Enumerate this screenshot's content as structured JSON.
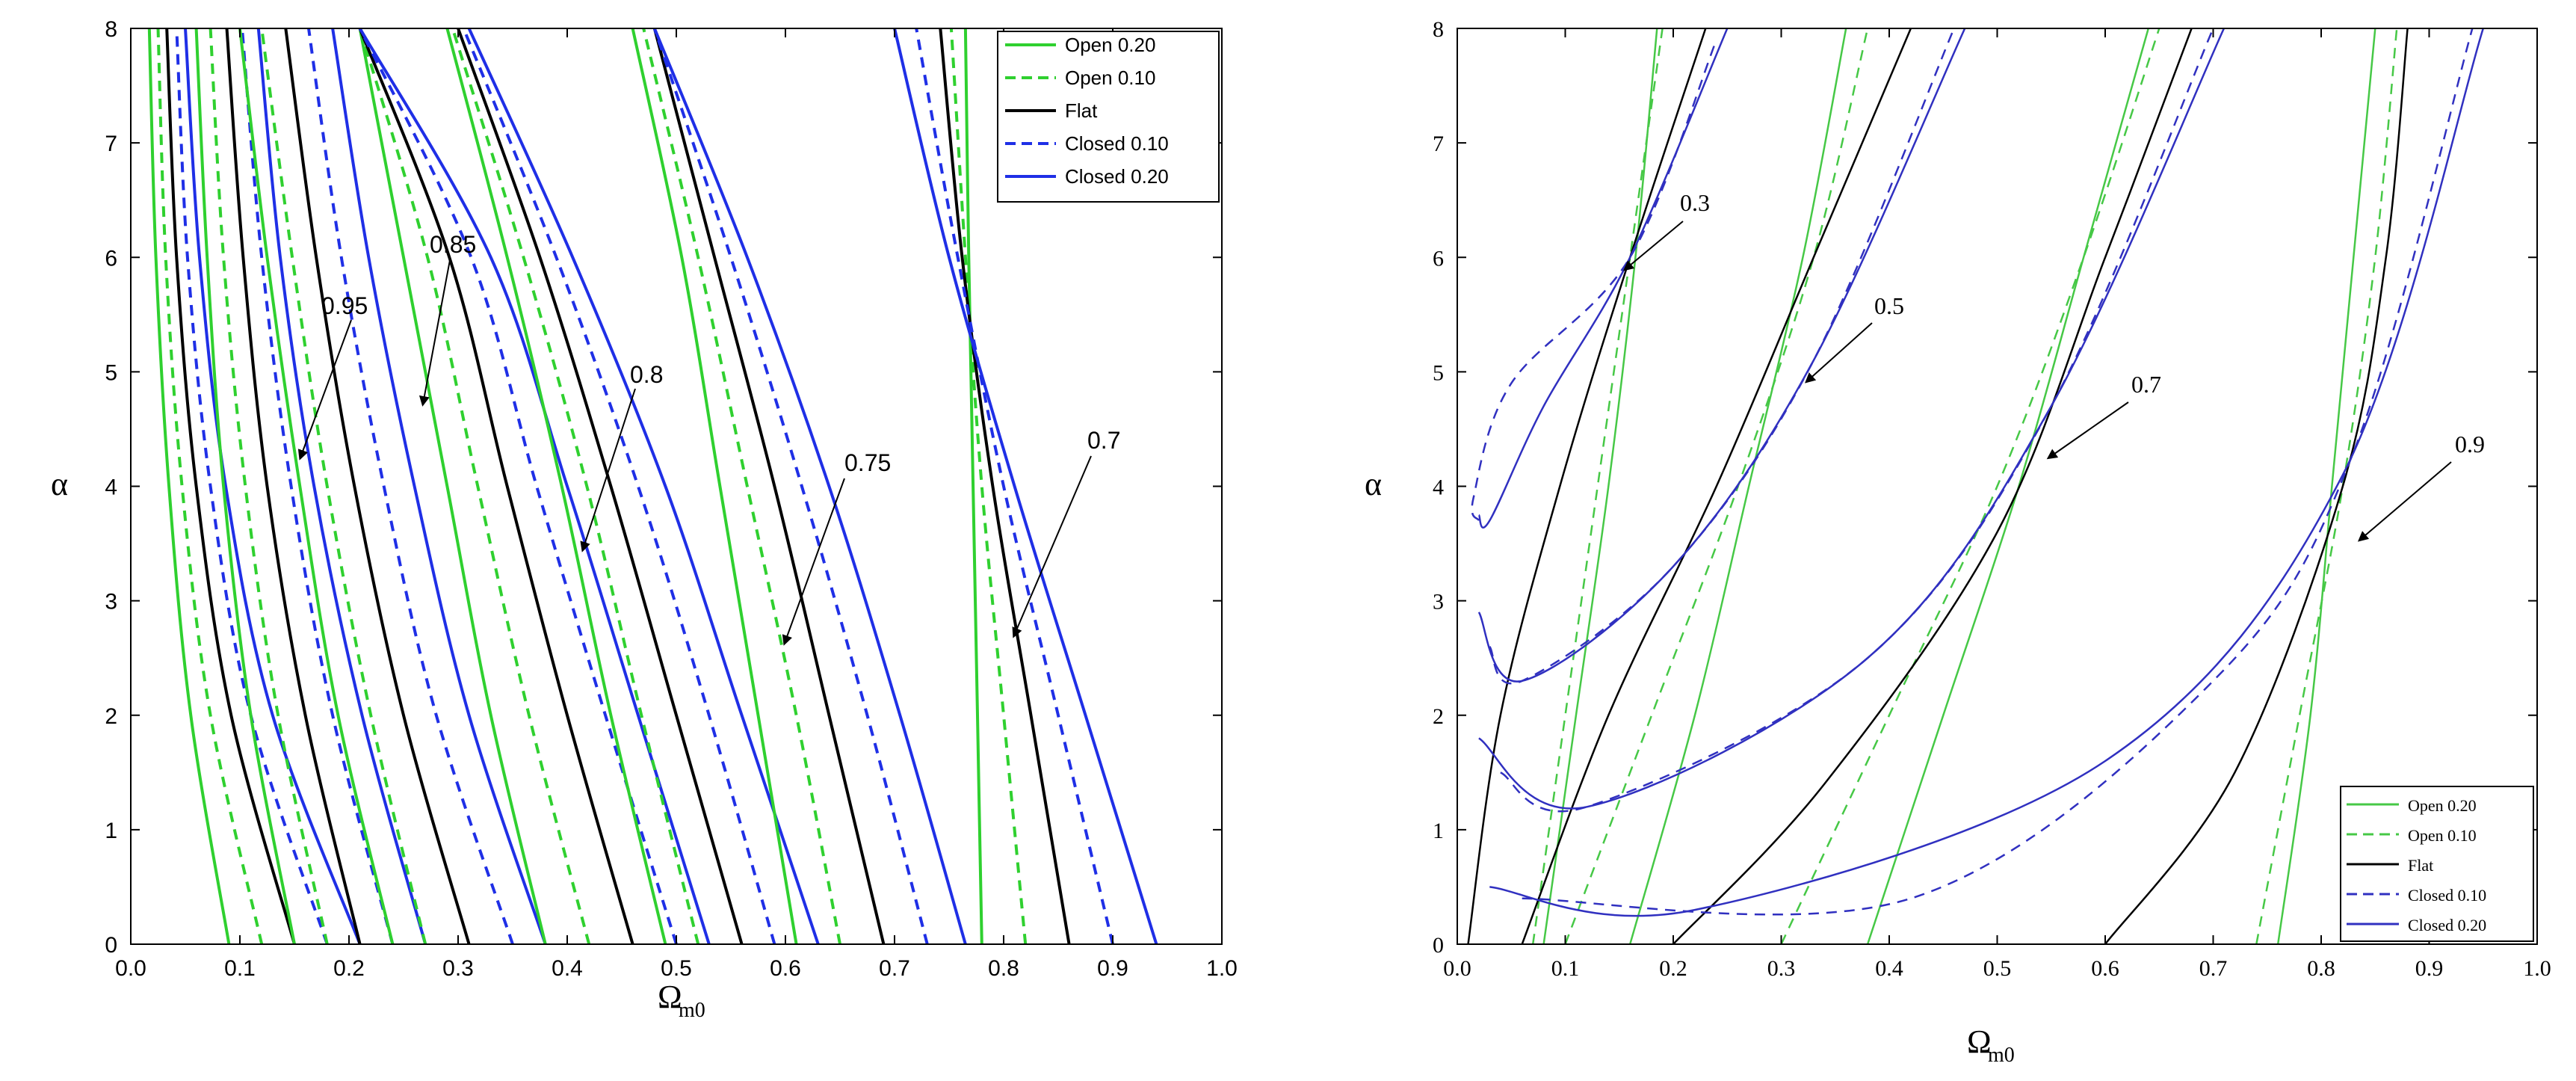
{
  "colors": {
    "open": "#2fd02f",
    "flat": "#000000",
    "closed": "#1f2fe6",
    "closedRight": "#3030c0",
    "openRight": "#46c846"
  },
  "chart_data": [
    {
      "type": "line",
      "panel": "left",
      "xlabel": "Ω",
      "xlabel_sub": "m0",
      "ylabel": "α",
      "xlim": [
        0.0,
        1.0
      ],
      "ylim": [
        0,
        8
      ],
      "xticks": [
        "0.0",
        "0.1",
        "0.2",
        "0.3",
        "0.4",
        "0.5",
        "0.6",
        "0.7",
        "0.8",
        "0.9",
        "1.0"
      ],
      "yticks": [
        "0",
        "1",
        "2",
        "3",
        "4",
        "5",
        "6",
        "7",
        "8"
      ],
      "legend": [
        "Open 0.20",
        "Open 0.10",
        "Flat",
        "Closed 0.10",
        "Closed 0.20"
      ],
      "annotations": [
        "0.95",
        "0.85",
        "0.8",
        "0.75",
        "0.7"
      ],
      "series": [
        {
          "group": "0.95-inner",
          "name": "Open 0.20",
          "x": [
            0.09,
            0.055,
            0.035,
            0.023,
            0.017
          ],
          "y": [
            0,
            2,
            4,
            6,
            8
          ]
        },
        {
          "group": "0.95-inner",
          "name": "Open 0.10",
          "x": [
            0.12,
            0.073,
            0.047,
            0.032,
            0.025
          ],
          "y": [
            0,
            2,
            4,
            6,
            8
          ]
        },
        {
          "group": "0.95-inner",
          "name": "Flat",
          "x": [
            0.15,
            0.092,
            0.06,
            0.042,
            0.033
          ],
          "y": [
            0,
            2,
            4,
            6,
            8
          ]
        },
        {
          "group": "0.95-inner",
          "name": "Closed 0.10",
          "x": [
            0.18,
            0.11,
            0.073,
            0.052,
            0.042
          ],
          "y": [
            0,
            2,
            4,
            6,
            8
          ]
        },
        {
          "group": "0.95-inner",
          "name": "Closed 0.20",
          "x": [
            0.21,
            0.13,
            0.087,
            0.063,
            0.05
          ],
          "y": [
            0,
            2,
            4,
            6,
            8
          ]
        },
        {
          "group": "0.95",
          "name": "Open 0.20",
          "x": [
            0.15,
            0.11,
            0.085,
            0.07,
            0.06
          ],
          "y": [
            0,
            2,
            4,
            6,
            8
          ]
        },
        {
          "group": "0.95",
          "name": "Open 0.10",
          "x": [
            0.18,
            0.135,
            0.105,
            0.085,
            0.073
          ],
          "y": [
            0,
            2,
            4,
            6,
            8
          ]
        },
        {
          "group": "0.95",
          "name": "Flat",
          "x": [
            0.21,
            0.16,
            0.125,
            0.103,
            0.088
          ],
          "y": [
            0,
            2,
            4,
            6,
            8
          ]
        },
        {
          "group": "0.95",
          "name": "Closed 0.10",
          "x": [
            0.24,
            0.185,
            0.147,
            0.12,
            0.102
          ],
          "y": [
            0,
            2,
            4,
            6,
            8
          ]
        },
        {
          "group": "0.95",
          "name": "Closed 0.20",
          "x": [
            0.27,
            0.212,
            0.168,
            0.137,
            0.117
          ],
          "y": [
            0,
            2,
            4,
            6,
            8
          ]
        },
        {
          "group": "0.85",
          "name": "Open 0.20",
          "x": [
            0.24,
            0.19,
            0.155,
            0.125,
            0.1
          ],
          "y": [
            0,
            2,
            4,
            6,
            8
          ]
        },
        {
          "group": "0.85",
          "name": "Open 0.10",
          "x": [
            0.27,
            0.22,
            0.18,
            0.148,
            0.12
          ],
          "y": [
            0,
            2,
            4,
            6,
            8
          ]
        },
        {
          "group": "0.85",
          "name": "Flat",
          "x": [
            0.31,
            0.25,
            0.205,
            0.17,
            0.142
          ],
          "y": [
            0,
            2,
            4,
            6,
            8
          ]
        },
        {
          "group": "0.85",
          "name": "Closed 0.10",
          "x": [
            0.35,
            0.28,
            0.232,
            0.193,
            0.163
          ],
          "y": [
            0,
            2,
            4,
            6,
            8
          ]
        },
        {
          "group": "0.85",
          "name": "Closed 0.20",
          "x": [
            0.38,
            0.31,
            0.26,
            0.218,
            0.185
          ],
          "y": [
            0,
            2,
            4,
            6,
            8
          ]
        },
        {
          "group": "0.8",
          "name": "Open 0.20",
          "x": [
            0.38,
            0.33,
            0.29,
            0.25,
            0.21
          ],
          "y": [
            0,
            2,
            4,
            6,
            8
          ]
        },
        {
          "group": "0.8",
          "name": "Open 0.10",
          "x": [
            0.42,
            0.365,
            0.318,
            0.272,
            0.21
          ],
          "y": [
            0,
            2,
            4,
            6,
            8
          ]
        },
        {
          "group": "0.8",
          "name": "Flat",
          "x": [
            0.46,
            0.4,
            0.345,
            0.292,
            0.21
          ],
          "y": [
            0,
            2,
            4,
            6,
            8
          ]
        },
        {
          "group": "0.8",
          "name": "Closed 0.10",
          "x": [
            0.5,
            0.435,
            0.372,
            0.312,
            0.21
          ],
          "y": [
            0,
            2,
            4,
            6,
            8
          ]
        },
        {
          "group": "0.8",
          "name": "Closed 0.20",
          "x": [
            0.53,
            0.465,
            0.4,
            0.33,
            0.21
          ],
          "y": [
            0,
            2,
            4,
            6,
            8
          ]
        },
        {
          "group": "0.75",
          "name": "Open 0.20",
          "x": [
            0.49,
            0.44,
            0.395,
            0.345,
            0.29
          ],
          "y": [
            0,
            2,
            4,
            6,
            8
          ]
        },
        {
          "group": "0.75",
          "name": "Open 0.10",
          "x": [
            0.52,
            0.468,
            0.418,
            0.36,
            0.295
          ],
          "y": [
            0,
            2,
            4,
            6,
            8
          ]
        },
        {
          "group": "0.75",
          "name": "Flat",
          "x": [
            0.56,
            0.5,
            0.44,
            0.375,
            0.3
          ],
          "y": [
            0,
            2,
            4,
            6,
            8
          ]
        },
        {
          "group": "0.75",
          "name": "Closed 0.10",
          "x": [
            0.59,
            0.53,
            0.465,
            0.39,
            0.305
          ],
          "y": [
            0,
            2,
            4,
            6,
            8
          ]
        },
        {
          "group": "0.75",
          "name": "Closed 0.20",
          "x": [
            0.63,
            0.56,
            0.49,
            0.405,
            0.31
          ],
          "y": [
            0,
            2,
            4,
            6,
            8
          ]
        },
        {
          "group": "0.7",
          "name": "Open 0.20",
          "x": [
            0.61,
            0.575,
            0.54,
            0.505,
            0.46
          ],
          "y": [
            0,
            2,
            4,
            6,
            8
          ]
        },
        {
          "group": "0.7",
          "name": "Open 0.10",
          "x": [
            0.65,
            0.61,
            0.565,
            0.52,
            0.47
          ],
          "y": [
            0,
            2,
            4,
            6,
            8
          ]
        },
        {
          "group": "0.7",
          "name": "Flat",
          "x": [
            0.69,
            0.64,
            0.59,
            0.535,
            0.48
          ],
          "y": [
            0,
            2,
            4,
            6,
            8
          ]
        },
        {
          "group": "0.7",
          "name": "Closed 0.10",
          "x": [
            0.73,
            0.675,
            0.615,
            0.55,
            0.48
          ],
          "y": [
            0,
            2,
            4,
            6,
            8
          ]
        },
        {
          "group": "0.7",
          "name": "Closed 0.20",
          "x": [
            0.765,
            0.705,
            0.64,
            0.565,
            0.48
          ],
          "y": [
            0,
            2,
            4,
            6,
            8
          ]
        },
        {
          "group": "0.7-outer",
          "name": "Open 0.20",
          "x": [
            0.78,
            0.776,
            0.772,
            0.768,
            0.765
          ],
          "y": [
            0,
            2,
            4,
            6,
            8
          ]
        },
        {
          "group": "0.7-outer",
          "name": "Open 0.10",
          "x": [
            0.82,
            0.8,
            0.78,
            0.765,
            0.752
          ],
          "y": [
            0,
            2,
            4,
            6,
            8
          ]
        },
        {
          "group": "0.7-outer",
          "name": "Flat",
          "x": [
            0.86,
            0.825,
            0.79,
            0.762,
            0.742
          ],
          "y": [
            0,
            2,
            4,
            6,
            8
          ]
        },
        {
          "group": "0.7-outer",
          "name": "Closed 0.10",
          "x": [
            0.9,
            0.85,
            0.8,
            0.758,
            0.72
          ],
          "y": [
            0,
            2,
            4,
            6,
            8
          ]
        },
        {
          "group": "0.7-outer",
          "name": "Closed 0.20",
          "x": [
            0.94,
            0.875,
            0.81,
            0.75,
            0.7
          ],
          "y": [
            0,
            2,
            4,
            6,
            8
          ]
        }
      ]
    },
    {
      "type": "line",
      "panel": "right",
      "xlabel": "Ω",
      "xlabel_sub": "m0",
      "ylabel": "α",
      "xlim": [
        0.0,
        1.0
      ],
      "ylim": [
        0,
        8
      ],
      "xticks": [
        "0.0",
        "0.1",
        "0.2",
        "0.3",
        "0.4",
        "0.5",
        "0.6",
        "0.7",
        "0.8",
        "0.9",
        "1.0"
      ],
      "yticks": [
        "0",
        "1",
        "2",
        "3",
        "4",
        "5",
        "6",
        "7",
        "8"
      ],
      "legend": [
        "Open 0.20",
        "Open 0.10",
        "Flat",
        "Closed 0.10",
        "Closed 0.20"
      ],
      "annotations": [
        "0.3",
        "0.5",
        "0.7",
        "0.9"
      ],
      "series": [
        {
          "group": "0.3",
          "name": "Open 0.20",
          "x": [
            0.08,
            0.11,
            0.14,
            0.165,
            0.185
          ],
          "y": [
            0,
            2,
            4,
            6,
            8
          ]
        },
        {
          "group": "0.3",
          "name": "Open 0.10",
          "x": [
            0.07,
            0.1,
            0.13,
            0.16,
            0.19
          ],
          "y": [
            0,
            2,
            4,
            6,
            8
          ]
        },
        {
          "group": "0.3",
          "name": "Flat",
          "x": [
            0.01,
            0.04,
            0.095,
            0.16,
            0.23
          ],
          "y": [
            0,
            2,
            4,
            6,
            8
          ]
        },
        {
          "group": "0.3",
          "name": "Closed 0.10",
          "x": [
            0.02,
            0.015,
            0.05,
            0.16,
            0.24
          ],
          "y": [
            3.7,
            3.9,
            4.9,
            6.0,
            7.9
          ]
        },
        {
          "group": "0.3",
          "name": "Closed 0.20",
          "x": [
            0.02,
            0.03,
            0.08,
            0.16,
            0.25
          ],
          "y": [
            3.75,
            3.7,
            4.7,
            6.0,
            8.0
          ]
        },
        {
          "group": "0.5",
          "name": "Open 0.20",
          "x": [
            0.16,
            0.22,
            0.27,
            0.32,
            0.36
          ],
          "y": [
            0,
            2,
            4,
            6,
            8
          ]
        },
        {
          "group": "0.5",
          "name": "Open 0.10",
          "x": [
            0.1,
            0.18,
            0.26,
            0.33,
            0.38
          ],
          "y": [
            0,
            2,
            4,
            6,
            8
          ]
        },
        {
          "group": "0.5",
          "name": "Flat",
          "x": [
            0.06,
            0.14,
            0.24,
            0.33,
            0.42
          ],
          "y": [
            0,
            2,
            4,
            6,
            8
          ]
        },
        {
          "group": "0.5",
          "name": "Closed 0.10",
          "x": [
            0.03,
            0.06,
            0.2,
            0.33,
            0.46
          ],
          "y": [
            2.6,
            2.3,
            3.3,
            5.1,
            8.0
          ]
        },
        {
          "group": "0.5",
          "name": "Closed 0.20",
          "x": [
            0.02,
            0.06,
            0.2,
            0.33,
            0.47
          ],
          "y": [
            2.9,
            2.3,
            3.3,
            5.1,
            8.0
          ]
        },
        {
          "group": "0.7",
          "name": "Open 0.20",
          "x": [
            0.38,
            0.45,
            0.52,
            0.58,
            0.64
          ],
          "y": [
            0,
            2,
            4,
            6,
            8
          ]
        },
        {
          "group": "0.7",
          "name": "Open 0.10",
          "x": [
            0.3,
            0.4,
            0.5,
            0.58,
            0.65
          ],
          "y": [
            0,
            2,
            4,
            6,
            8
          ]
        },
        {
          "group": "0.7",
          "name": "Flat",
          "x": [
            0.2,
            0.34,
            0.5,
            0.6,
            0.68
          ],
          "y": [
            0,
            1.4,
            3.6,
            6.0,
            8.0
          ]
        },
        {
          "group": "0.7",
          "name": "Closed 0.10",
          "x": [
            0.04,
            0.12,
            0.38,
            0.55,
            0.7
          ],
          "y": [
            1.5,
            1.2,
            2.5,
            4.7,
            8.0
          ]
        },
        {
          "group": "0.7",
          "name": "Closed 0.20",
          "x": [
            0.02,
            0.12,
            0.38,
            0.55,
            0.71
          ],
          "y": [
            1.8,
            1.2,
            2.5,
            4.7,
            8.0
          ]
        },
        {
          "group": "0.9",
          "name": "Open 0.20",
          "x": [
            0.76,
            0.79,
            0.81,
            0.83,
            0.85
          ],
          "y": [
            0,
            2,
            4,
            6,
            8
          ]
        },
        {
          "group": "0.9",
          "name": "Open 0.10",
          "x": [
            0.74,
            0.78,
            0.82,
            0.85,
            0.87
          ],
          "y": [
            0,
            2,
            4,
            6,
            8
          ]
        },
        {
          "group": "0.9",
          "name": "Flat",
          "x": [
            0.6,
            0.72,
            0.82,
            0.86,
            0.88
          ],
          "y": [
            0,
            1.5,
            4.0,
            6.0,
            8.0
          ]
        },
        {
          "group": "0.9",
          "name": "Closed 0.10",
          "x": [
            0.06,
            0.42,
            0.7,
            0.83,
            0.94
          ],
          "y": [
            0.4,
            0.4,
            2.3,
            4.3,
            8.0
          ]
        },
        {
          "group": "0.9",
          "name": "Closed 0.20",
          "x": [
            0.03,
            0.22,
            0.6,
            0.82,
            0.95
          ],
          "y": [
            0.5,
            0.3,
            1.6,
            4.1,
            8.0
          ]
        }
      ]
    }
  ]
}
